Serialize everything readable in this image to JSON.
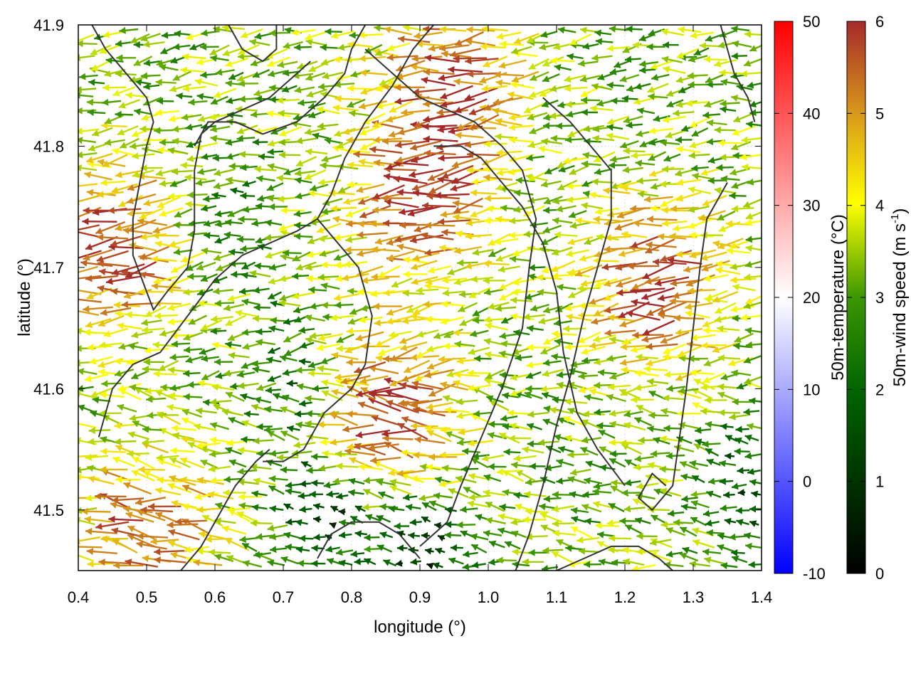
{
  "chart_data": {
    "type": "vector-field",
    "xlabel": "longitude (°)",
    "ylabel": "latitude (°)",
    "xlim": [
      0.4,
      1.4
    ],
    "ylim": [
      41.45,
      41.9
    ],
    "xticks": [
      0.4,
      0.5,
      0.6,
      0.7,
      0.8,
      0.9,
      1.0,
      1.1,
      1.2,
      1.3,
      1.4
    ],
    "xtick_labels": [
      "0.4",
      "0.5",
      "0.6",
      "0.7",
      "0.8",
      "0.9",
      "1.0",
      "1.1",
      "1.2",
      "1.3",
      "1.4"
    ],
    "yticks": [
      41.5,
      41.6,
      41.7,
      41.8,
      41.9
    ],
    "ytick_labels": [
      "41.5",
      "41.6",
      "41.7",
      "41.8",
      "41.9"
    ],
    "grid": true,
    "temperature_colorbar": {
      "label": "50m-temperature (°C)",
      "range": [
        -10,
        50
      ],
      "ticks": [
        -10,
        0,
        10,
        20,
        30,
        40,
        50
      ],
      "tick_labels": [
        "-10",
        "0",
        "10",
        "20",
        "30",
        "40",
        "50"
      ],
      "colors": [
        "#0000ff",
        "#ffffff",
        "#ff0000"
      ]
    },
    "wind_colorbar": {
      "label": "50m-wind speed (m s-1)",
      "label_main": "50m-wind speed (m s",
      "label_sup": "-1",
      "label_end": ")",
      "range": [
        0,
        6
      ],
      "ticks": [
        0,
        1,
        2,
        3,
        4,
        5,
        6
      ],
      "tick_labels": [
        "0",
        "1",
        "2",
        "3",
        "4",
        "5",
        "6"
      ],
      "colors": [
        "#000000",
        "#006400",
        "#3c9600",
        "#ffff00",
        "#d99a1a",
        "#a52a2a"
      ]
    },
    "wind_field": {
      "dominant_direction": "westward",
      "speed_range": [
        0,
        6
      ],
      "high_speed_regions": [
        {
          "lon": 0.9,
          "lat": 41.76,
          "speed": 6
        },
        {
          "lon": 0.45,
          "lat": 41.72,
          "speed": 6
        },
        {
          "lon": 0.85,
          "lat": 41.58,
          "speed": 6
        },
        {
          "lon": 1.25,
          "lat": 41.69,
          "speed": 6
        },
        {
          "lon": 0.5,
          "lat": 41.48,
          "speed": 5.8
        },
        {
          "lon": 0.95,
          "lat": 41.86,
          "speed": 5.5
        }
      ],
      "low_speed_regions": [
        {
          "lon": 0.61,
          "lat": 41.74,
          "speed": 2.2
        },
        {
          "lon": 0.72,
          "lat": 41.61,
          "speed": 1.8
        },
        {
          "lon": 0.76,
          "lat": 41.5,
          "speed": 0.7
        },
        {
          "lon": 0.9,
          "lat": 41.47,
          "speed": 0.6
        },
        {
          "lon": 1.38,
          "lat": 41.52,
          "speed": 1.5
        }
      ]
    },
    "contours": [
      [
        [
          0.42,
          41.9
        ],
        [
          0.44,
          41.88
        ],
        [
          0.47,
          41.86
        ],
        [
          0.5,
          41.84
        ],
        [
          0.51,
          41.82
        ],
        [
          0.5,
          41.8
        ],
        [
          0.49,
          41.77
        ],
        [
          0.48,
          41.74
        ],
        [
          0.48,
          41.71
        ],
        [
          0.5,
          41.68
        ],
        [
          0.51,
          41.665
        ],
        [
          0.53,
          41.68
        ],
        [
          0.56,
          41.7
        ],
        [
          0.57,
          41.73
        ],
        [
          0.57,
          41.78
        ],
        [
          0.58,
          41.81
        ],
        [
          0.6,
          41.82
        ],
        [
          0.64,
          41.83
        ],
        [
          0.68,
          41.84
        ],
        [
          0.72,
          41.86
        ],
        [
          0.74,
          41.87
        ]
      ],
      [
        [
          0.62,
          41.9
        ],
        [
          0.64,
          41.88
        ],
        [
          0.67,
          41.87
        ],
        [
          0.69,
          41.88
        ],
        [
          0.69,
          41.9
        ]
      ],
      [
        [
          0.57,
          41.8
        ],
        [
          0.59,
          41.82
        ],
        [
          0.63,
          41.82
        ],
        [
          0.67,
          41.81
        ],
        [
          0.72,
          41.82
        ],
        [
          0.76,
          41.84
        ],
        [
          0.79,
          41.86
        ],
        [
          0.8,
          41.88
        ],
        [
          0.82,
          41.9
        ]
      ],
      [
        [
          0.43,
          41.56
        ],
        [
          0.45,
          41.6
        ],
        [
          0.48,
          41.62
        ],
        [
          0.52,
          41.63
        ],
        [
          0.56,
          41.66
        ],
        [
          0.6,
          41.69
        ],
        [
          0.64,
          41.71
        ],
        [
          0.68,
          41.72
        ],
        [
          0.72,
          41.73
        ],
        [
          0.75,
          41.74
        ],
        [
          0.77,
          41.76
        ],
        [
          0.79,
          41.79
        ],
        [
          0.82,
          41.82
        ],
        [
          0.86,
          41.85
        ],
        [
          0.89,
          41.88
        ],
        [
          0.92,
          41.9
        ]
      ],
      [
        [
          0.75,
          41.74
        ],
        [
          0.78,
          41.72
        ],
        [
          0.81,
          41.7
        ],
        [
          0.83,
          41.66
        ],
        [
          0.82,
          41.62
        ],
        [
          0.8,
          41.6
        ],
        [
          0.76,
          41.58
        ],
        [
          0.73,
          41.55
        ],
        [
          0.7,
          41.54
        ],
        [
          0.67,
          41.54
        ]
      ],
      [
        [
          0.92,
          41.8
        ],
        [
          0.96,
          41.8
        ],
        [
          0.99,
          41.79
        ],
        [
          1.02,
          41.77
        ],
        [
          1.05,
          41.75
        ],
        [
          1.08,
          41.72
        ],
        [
          1.1,
          41.68
        ],
        [
          1.11,
          41.63
        ],
        [
          1.13,
          41.58
        ],
        [
          1.16,
          41.55
        ],
        [
          1.2,
          41.52
        ]
      ],
      [
        [
          0.82,
          41.88
        ],
        [
          0.86,
          41.86
        ],
        [
          0.9,
          41.84
        ],
        [
          0.94,
          41.83
        ],
        [
          0.98,
          41.82
        ],
        [
          1.02,
          41.8
        ],
        [
          1.05,
          41.78
        ],
        [
          1.07,
          41.74
        ],
        [
          1.06,
          41.7
        ],
        [
          1.05,
          41.65
        ],
        [
          1.02,
          41.6
        ],
        [
          0.99,
          41.56
        ],
        [
          0.96,
          41.52
        ],
        [
          0.94,
          41.49
        ],
        [
          0.9,
          41.47
        ]
      ],
      [
        [
          1.08,
          41.84
        ],
        [
          1.12,
          41.82
        ],
        [
          1.15,
          41.8
        ],
        [
          1.18,
          41.78
        ],
        [
          1.18,
          41.74
        ],
        [
          1.16,
          41.7
        ],
        [
          1.14,
          41.66
        ],
        [
          1.12,
          41.61
        ],
        [
          1.1,
          41.57
        ],
        [
          1.08,
          41.52
        ],
        [
          1.06,
          41.48
        ],
        [
          1.04,
          41.45
        ]
      ],
      [
        [
          1.35,
          41.77
        ],
        [
          1.32,
          41.74
        ],
        [
          1.31,
          41.7
        ],
        [
          1.3,
          41.65
        ],
        [
          1.29,
          41.6
        ],
        [
          1.28,
          41.56
        ],
        [
          1.27,
          41.52
        ],
        [
          1.24,
          41.5
        ],
        [
          1.22,
          41.51
        ],
        [
          1.24,
          41.53
        ],
        [
          1.26,
          41.52
        ]
      ],
      [
        [
          1.1,
          41.45
        ],
        [
          1.14,
          41.46
        ],
        [
          1.18,
          41.47
        ],
        [
          1.22,
          41.47
        ],
        [
          1.25,
          41.46
        ],
        [
          1.27,
          41.45
        ]
      ],
      [
        [
          1.34,
          41.9
        ],
        [
          1.35,
          41.88
        ],
        [
          1.36,
          41.86
        ],
        [
          1.38,
          41.84
        ],
        [
          1.39,
          41.82
        ]
      ],
      [
        [
          0.75,
          41.46
        ],
        [
          0.77,
          41.48
        ],
        [
          0.8,
          41.49
        ],
        [
          0.84,
          41.49
        ],
        [
          0.87,
          41.48
        ],
        [
          0.9,
          41.46
        ]
      ],
      [
        [
          0.55,
          41.45
        ],
        [
          0.58,
          41.47
        ],
        [
          0.61,
          41.5
        ],
        [
          0.63,
          41.52
        ],
        [
          0.66,
          41.54
        ],
        [
          0.68,
          41.55
        ]
      ]
    ]
  }
}
